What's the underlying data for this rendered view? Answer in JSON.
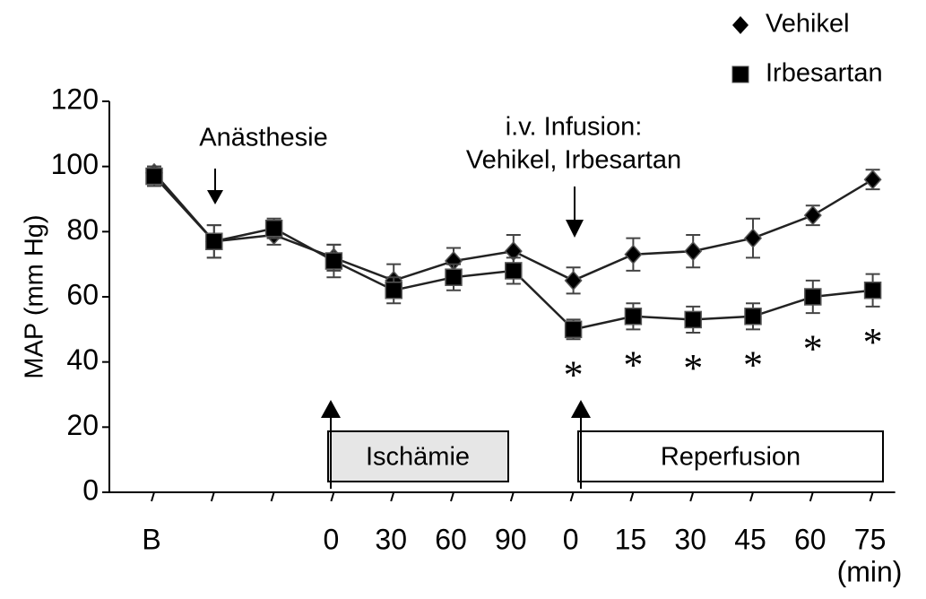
{
  "chart_data": {
    "type": "line",
    "ylabel": "MAP  (mm Hg)",
    "xlabel": "(min)",
    "categories": [
      "B",
      null,
      null,
      "0",
      "30",
      "60",
      "90",
      "0",
      "15",
      "30",
      "45",
      "60",
      "75"
    ],
    "series": [
      {
        "name": "Vehikel",
        "color": "#222222",
        "marker": "diamond",
        "values": [
          98,
          77,
          79,
          72,
          65,
          71,
          74,
          65,
          73,
          74,
          78,
          85,
          96
        ],
        "errors": [
          2,
          5,
          3,
          4,
          5,
          4,
          5,
          4,
          5,
          5,
          6,
          3,
          3
        ]
      },
      {
        "name": "Irbesartan",
        "color": "#222222",
        "marker": "square",
        "values": [
          97,
          77,
          81,
          71,
          62,
          66,
          68,
          50,
          54,
          53,
          54,
          60,
          62
        ],
        "errors": [
          3,
          5,
          3,
          5,
          4,
          4,
          4,
          3,
          4,
          4,
          4,
          5,
          5
        ]
      }
    ],
    "ylim": [
      0,
      120
    ],
    "yticks": [
      0,
      20,
      40,
      60,
      80,
      100,
      120
    ],
    "legend": "top-right",
    "annotations": {
      "anesthesia": "Anästhesie",
      "infusion_1": "i.v. Infusion:",
      "infusion_2": "Vehikel, Irbesartan",
      "ischemia": "Ischämie",
      "reperfusion": "Reperfusion"
    },
    "significance_label": "*",
    "significant": [
      false,
      false,
      false,
      false,
      false,
      false,
      false,
      true,
      true,
      true,
      true,
      true,
      true
    ]
  }
}
